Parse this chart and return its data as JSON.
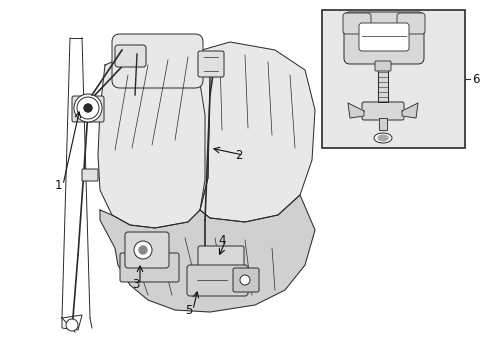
{
  "background_color": "#ffffff",
  "fig_width": 4.89,
  "fig_height": 3.6,
  "dpi": 100,
  "line_color": "#2a2a2a",
  "line_width": 0.7,
  "label_fontsize": 8.5,
  "label_color": "#111111",
  "seat_light_fill": "#e8e8e8",
  "seat_dark_fill": "#d0d0d0",
  "inset_fill": "#e8e8e8"
}
